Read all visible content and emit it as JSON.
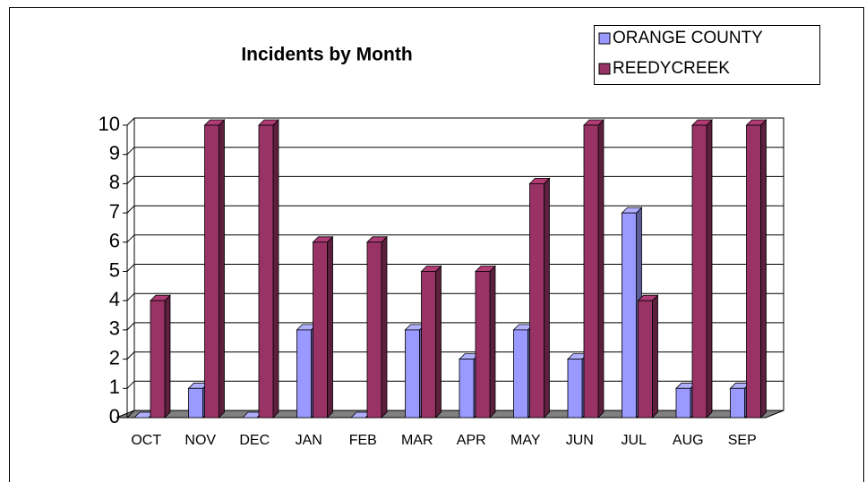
{
  "chart_data": {
    "type": "bar3d",
    "title": "Incidents by Month",
    "categories": [
      "OCT",
      "NOV",
      "DEC",
      "JAN",
      "FEB",
      "MAR",
      "APR",
      "MAY",
      "JUN",
      "JUL",
      "AUG",
      "SEP"
    ],
    "series": [
      {
        "name": "ORANGE COUNTY",
        "color": "#9999ff",
        "values": [
          0,
          1,
          0,
          3,
          0,
          3,
          2,
          3,
          2,
          7,
          1,
          1
        ]
      },
      {
        "name": "REEDYCREEK",
        "color": "#993366",
        "values": [
          4,
          10,
          10,
          6,
          6,
          5,
          5,
          8,
          10,
          4,
          10,
          10
        ]
      }
    ],
    "ylim": [
      0,
      10
    ],
    "yticks": [
      0,
      1,
      2,
      3,
      4,
      5,
      6,
      7,
      8,
      9,
      10
    ],
    "grid": true,
    "legend": "top-right"
  }
}
